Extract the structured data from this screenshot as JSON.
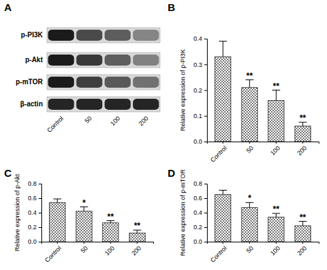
{
  "blot": {
    "title": "A",
    "rows": [
      "p-PI3K",
      "p-Akt",
      "p-mTOR",
      "β-actin"
    ],
    "lanes": [
      "Control",
      "50",
      "100",
      "200"
    ]
  },
  "chart_data": [
    {
      "type": "bar",
      "title": "B",
      "ylabel": "Relative expression of p-PI3K",
      "categories": [
        "Control",
        "50",
        "100",
        "200"
      ],
      "values": [
        0.33,
        0.21,
        0.16,
        0.06
      ],
      "errors": [
        0.06,
        0.03,
        0.04,
        0.015
      ],
      "significance": [
        null,
        "**",
        "**",
        "**"
      ],
      "ylim": [
        0,
        0.4
      ],
      "yticks": [
        {
          "value": 0,
          "label": "0.0"
        },
        0.1,
        0.2,
        0.3,
        0.4
      ],
      "color": "#555555"
    },
    {
      "type": "bar",
      "title": "C",
      "ylabel": "Relative expression of p-Akt",
      "categories": [
        "Control",
        "50",
        "100",
        "200"
      ],
      "values": [
        0.54,
        0.42,
        0.26,
        0.12
      ],
      "errors": [
        0.05,
        0.06,
        0.03,
        0.04
      ],
      "significance": [
        null,
        "*",
        "**",
        "**"
      ],
      "ylim": [
        0,
        0.8
      ],
      "yticks": [
        {
          "value": 0,
          "label": "0.0"
        },
        0.2,
        0.4,
        0.6,
        0.8
      ],
      "color": "#555555"
    },
    {
      "type": "bar",
      "title": "D",
      "ylabel": "Relative expression of p-mTOR",
      "categories": [
        "Control",
        "50",
        "100",
        "200"
      ],
      "values": [
        0.65,
        0.47,
        0.34,
        0.22
      ],
      "errors": [
        0.06,
        0.07,
        0.05,
        0.06
      ],
      "significance": [
        null,
        "*",
        "**",
        "**"
      ],
      "ylim": [
        0,
        0.8
      ],
      "yticks": [
        {
          "value": 0,
          "label": "0.0"
        },
        0.2,
        0.4,
        0.6,
        0.8
      ],
      "color": "#555555"
    }
  ]
}
